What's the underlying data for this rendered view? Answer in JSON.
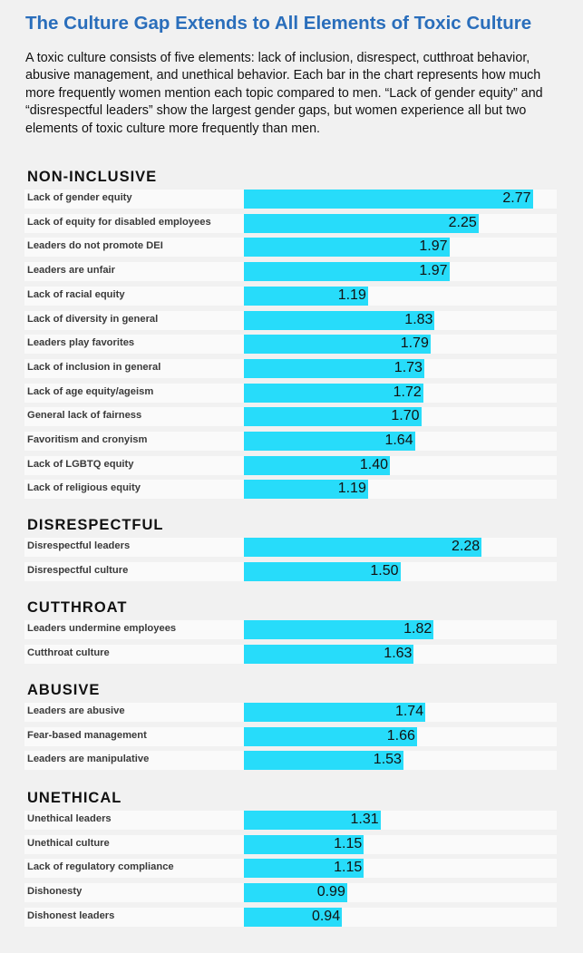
{
  "title": "The Culture Gap Extends to All Elements of Toxic Culture",
  "subtitle": "A toxic culture consists of five elements: lack of inclusion, disrespect, cutthroat behavior, abusive management, and unethical behavior. Each bar in the chart represents how much more frequently women mention each topic compared to men. “Lack of gender equity” and “disrespectful leaders” show the largest gender gaps, but women experience all but two elements of toxic culture more frequently than men.",
  "colors": {
    "bar": "#27dcfa",
    "title": "#2a6ebb",
    "background": "#f1f1f1"
  },
  "chart_data": {
    "type": "bar",
    "orientation": "horizontal",
    "xlim": [
      0,
      2.8
    ],
    "groups": [
      {
        "name": "NON-INCLUSIVE",
        "items": [
          {
            "label": "Lack of gender equity",
            "value": 2.77
          },
          {
            "label": "Lack of equity for disabled employees",
            "value": 2.25
          },
          {
            "label": "Leaders do not promote DEI",
            "value": 1.97
          },
          {
            "label": "Leaders are unfair",
            "value": 1.97
          },
          {
            "label": "Lack of racial equity",
            "value": 1.19
          },
          {
            "label": "Lack of diversity in general",
            "value": 1.83
          },
          {
            "label": "Leaders play favorites",
            "value": 1.79
          },
          {
            "label": "Lack of inclusion in general",
            "value": 1.73
          },
          {
            "label": "Lack of age equity/ageism",
            "value": 1.72
          },
          {
            "label": "General lack of fairness",
            "value": 1.7
          },
          {
            "label": "Favoritism and cronyism",
            "value": 1.64
          },
          {
            "label": "Lack of LGBTQ equity",
            "value": 1.4
          },
          {
            "label": "Lack of religious equity",
            "value": 1.19
          }
        ]
      },
      {
        "name": "DISRESPECTFUL",
        "items": [
          {
            "label": "Disrespectful leaders",
            "value": 2.28
          },
          {
            "label": "Disrespectful culture",
            "value": 1.5
          }
        ]
      },
      {
        "name": "CUTTHROAT",
        "items": [
          {
            "label": "Leaders undermine employees",
            "value": 1.82
          },
          {
            "label": "Cutthroat culture",
            "value": 1.63
          }
        ]
      },
      {
        "name": "ABUSIVE",
        "items": [
          {
            "label": "Leaders are abusive",
            "value": 1.74
          },
          {
            "label": "Fear-based management",
            "value": 1.66
          },
          {
            "label": "Leaders are manipulative",
            "value": 1.53
          }
        ]
      },
      {
        "name": "UNETHICAL",
        "items": [
          {
            "label": "Unethical leaders",
            "value": 1.31
          },
          {
            "label": "Unethical culture",
            "value": 1.15
          },
          {
            "label": "Lack of regulatory compliance",
            "value": 1.15
          },
          {
            "label": "Dishonesty",
            "value": 0.99
          },
          {
            "label": "Dishonest leaders",
            "value": 0.94
          }
        ]
      }
    ]
  }
}
